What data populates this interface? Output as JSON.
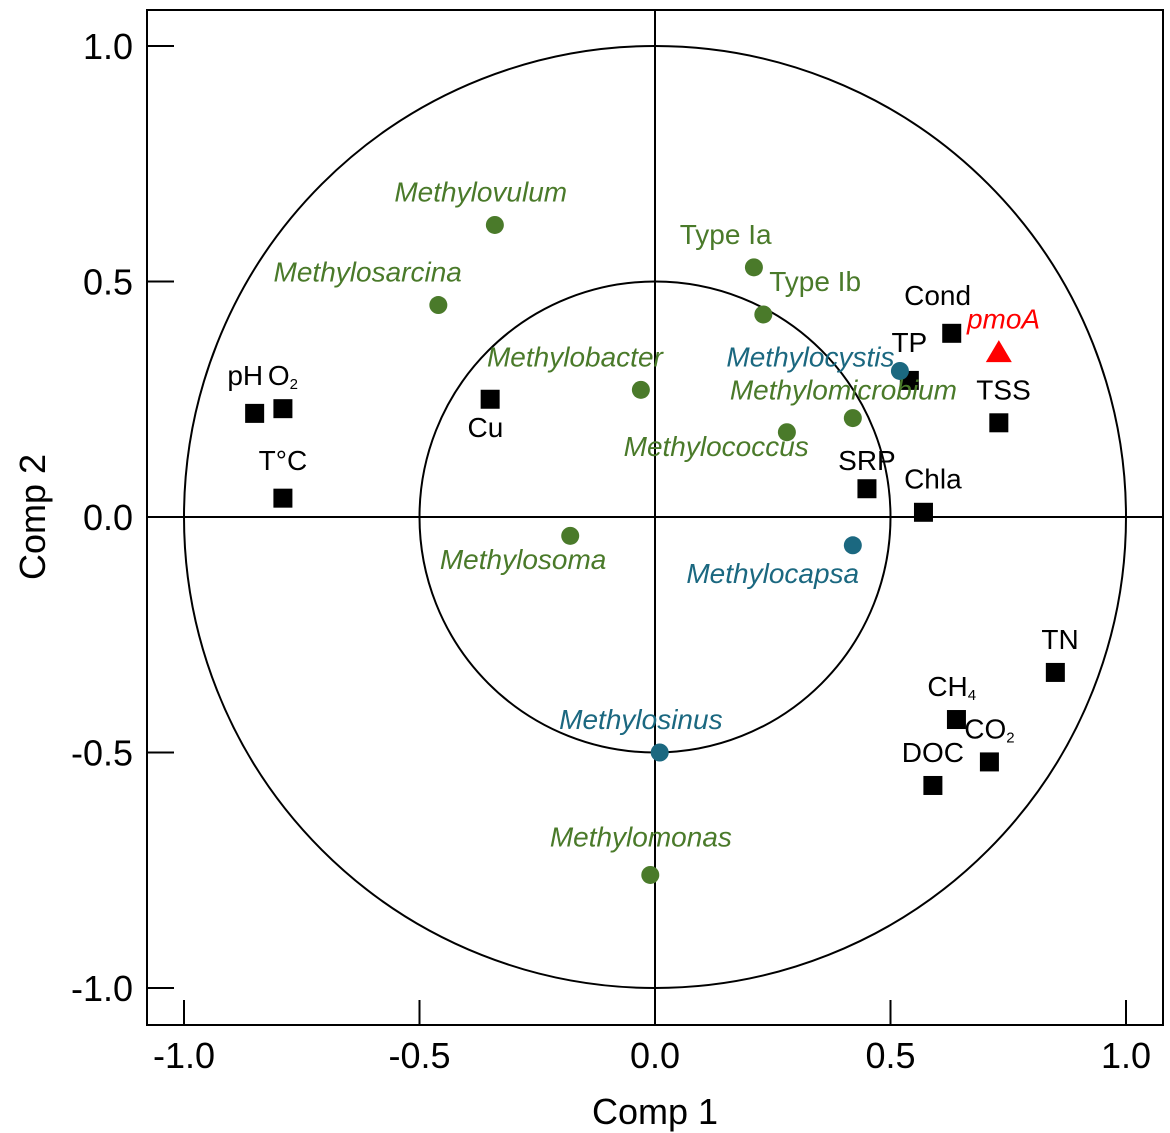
{
  "chart_data": {
    "type": "scatter",
    "title": "",
    "xlabel": "Comp  1",
    "ylabel": "Comp  2",
    "xlim": [
      -1.08,
      1.08
    ],
    "ylim": [
      -1.08,
      1.08
    ],
    "xticks": [
      {
        "value": -1.0,
        "label": "-1.0"
      },
      {
        "value": -0.5,
        "label": "-0.5"
      },
      {
        "value": 0.0,
        "label": "0.0"
      },
      {
        "value": 0.5,
        "label": "0.5"
      },
      {
        "value": 1.0,
        "label": "1.0"
      }
    ],
    "yticks": [
      {
        "value": 1.0,
        "label": "1.0"
      },
      {
        "value": 0.5,
        "label": "0.5"
      },
      {
        "value": 0.0,
        "label": "0.0"
      },
      {
        "value": -0.5,
        "label": "-0.5"
      },
      {
        "value": -1.0,
        "label": "-1.0"
      }
    ],
    "circles": [
      1.0,
      0.5
    ],
    "colors": {
      "green": "#4a7a2a",
      "teal": "#1b6880",
      "black": "#000000",
      "red": "#ff0000"
    },
    "points": [
      {
        "label": "pH",
        "sub": "",
        "x": -0.85,
        "y": 0.22,
        "marker": "square",
        "color": "black",
        "italic": false,
        "lx": -0.87,
        "ly": 0.28,
        "anchor": "middle"
      },
      {
        "label": "O",
        "sub": "2",
        "x": -0.79,
        "y": 0.23,
        "marker": "square",
        "color": "black",
        "italic": false,
        "lx": -0.79,
        "ly": 0.28,
        "anchor": "middle"
      },
      {
        "label": "T°C",
        "sub": "",
        "x": -0.79,
        "y": 0.04,
        "marker": "square",
        "color": "black",
        "italic": false,
        "lx": -0.79,
        "ly": 0.1,
        "anchor": "middle"
      },
      {
        "label": "Cu",
        "sub": "",
        "x": -0.35,
        "y": 0.25,
        "marker": "square",
        "color": "black",
        "italic": false,
        "lx": -0.36,
        "ly": 0.17,
        "anchor": "middle"
      },
      {
        "label": "Cond",
        "sub": "",
        "x": 0.63,
        "y": 0.39,
        "marker": "square",
        "color": "black",
        "italic": false,
        "lx": 0.6,
        "ly": 0.45,
        "anchor": "middle"
      },
      {
        "label": "TP",
        "sub": "",
        "x": 0.54,
        "y": 0.29,
        "marker": "square",
        "color": "black",
        "italic": false,
        "lx": 0.54,
        "ly": 0.35,
        "anchor": "middle"
      },
      {
        "label": "TSS",
        "sub": "",
        "x": 0.73,
        "y": 0.2,
        "marker": "square",
        "color": "black",
        "italic": false,
        "lx": 0.74,
        "ly": 0.25,
        "anchor": "middle"
      },
      {
        "label": "SRP",
        "sub": "",
        "x": 0.45,
        "y": 0.06,
        "marker": "square",
        "color": "black",
        "italic": false,
        "lx": 0.45,
        "ly": 0.1,
        "anchor": "middle"
      },
      {
        "label": "Chla",
        "sub": "",
        "x": 0.57,
        "y": 0.01,
        "marker": "square",
        "color": "black",
        "italic": false,
        "lx": 0.59,
        "ly": 0.06,
        "anchor": "middle"
      },
      {
        "label": "TN",
        "sub": "",
        "x": 0.85,
        "y": -0.33,
        "marker": "square",
        "color": "black",
        "italic": false,
        "lx": 0.86,
        "ly": -0.28,
        "anchor": "middle"
      },
      {
        "label": "CH",
        "sub": "4",
        "x": 0.64,
        "y": -0.43,
        "marker": "square",
        "color": "black",
        "italic": false,
        "lx": 0.63,
        "ly": -0.38,
        "anchor": "middle"
      },
      {
        "label": "CO",
        "sub": "2",
        "x": 0.71,
        "y": -0.52,
        "marker": "square",
        "color": "black",
        "italic": false,
        "lx": 0.71,
        "ly": -0.47,
        "anchor": "middle"
      },
      {
        "label": "DOC",
        "sub": "",
        "x": 0.59,
        "y": -0.57,
        "marker": "square",
        "color": "black",
        "italic": false,
        "lx": 0.59,
        "ly": -0.52,
        "anchor": "middle"
      },
      {
        "label": "pmoA",
        "sub": "",
        "x": 0.73,
        "y": 0.35,
        "marker": "triangle",
        "color": "red",
        "italic": true,
        "lx": 0.74,
        "ly": 0.4,
        "anchor": "middle"
      },
      {
        "label": "Methylovulum",
        "sub": "",
        "x": -0.34,
        "y": 0.62,
        "marker": "circle",
        "color": "green",
        "italic": true,
        "lx": -0.37,
        "ly": 0.67,
        "anchor": "middle"
      },
      {
        "label": "Methylosarcina",
        "sub": "",
        "x": -0.46,
        "y": 0.45,
        "marker": "circle",
        "color": "green",
        "italic": true,
        "lx": -0.61,
        "ly": 0.5,
        "anchor": "middle"
      },
      {
        "label": "Type Ia",
        "sub": "",
        "x": 0.21,
        "y": 0.53,
        "marker": "circle",
        "color": "green",
        "italic": false,
        "lx": 0.15,
        "ly": 0.58,
        "anchor": "middle"
      },
      {
        "label": "Type Ib",
        "sub": "",
        "x": 0.23,
        "y": 0.43,
        "marker": "circle",
        "color": "green",
        "italic": false,
        "lx": 0.34,
        "ly": 0.48,
        "anchor": "middle"
      },
      {
        "label": "Methylobacter",
        "sub": "",
        "x": -0.03,
        "y": 0.27,
        "marker": "circle",
        "color": "green",
        "italic": true,
        "lx": -0.17,
        "ly": 0.32,
        "anchor": "middle"
      },
      {
        "label": "Methylomicrobium",
        "sub": "",
        "x": 0.42,
        "y": 0.21,
        "marker": "circle",
        "color": "green",
        "italic": true,
        "lx": 0.4,
        "ly": 0.25,
        "anchor": "middle"
      },
      {
        "label": "Methylococcus",
        "sub": "",
        "x": 0.28,
        "y": 0.18,
        "marker": "circle",
        "color": "green",
        "italic": true,
        "lx": 0.13,
        "ly": 0.13,
        "anchor": "middle"
      },
      {
        "label": "Methylosoma",
        "sub": "",
        "x": -0.18,
        "y": -0.04,
        "marker": "circle",
        "color": "green",
        "italic": true,
        "lx": -0.28,
        "ly": -0.11,
        "anchor": "middle"
      },
      {
        "label": "Methylomonas",
        "sub": "",
        "x": -0.01,
        "y": -0.76,
        "marker": "circle",
        "color": "green",
        "italic": true,
        "lx": -0.03,
        "ly": -0.7,
        "anchor": "middle"
      },
      {
        "label": "Methylocystis",
        "sub": "",
        "x": 0.52,
        "y": 0.31,
        "marker": "circle",
        "color": "teal",
        "italic": true,
        "lx": 0.33,
        "ly": 0.32,
        "anchor": "middle"
      },
      {
        "label": "Methylocapsa",
        "sub": "",
        "x": 0.42,
        "y": -0.06,
        "marker": "circle",
        "color": "teal",
        "italic": true,
        "lx": 0.25,
        "ly": -0.14,
        "anchor": "middle"
      },
      {
        "label": "Methylosinus",
        "sub": "",
        "x": 0.01,
        "y": -0.5,
        "marker": "circle",
        "color": "teal",
        "italic": true,
        "lx": -0.03,
        "ly": -0.45,
        "anchor": "middle"
      }
    ]
  }
}
